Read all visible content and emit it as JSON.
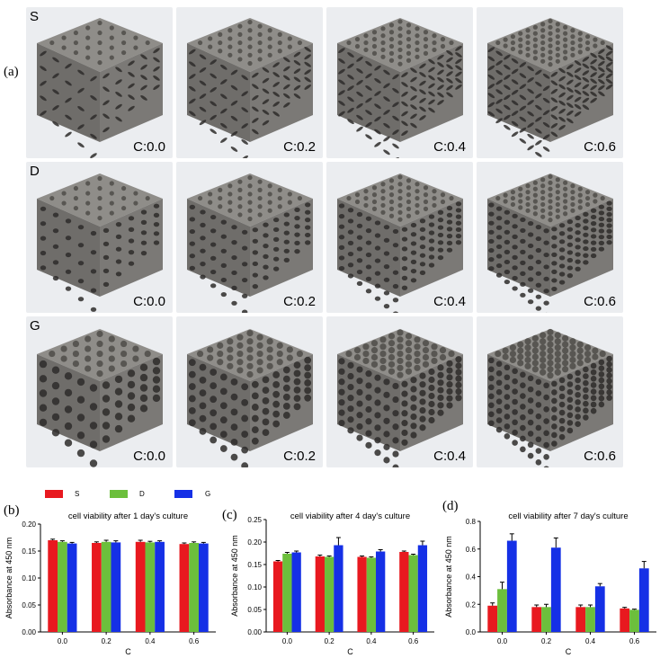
{
  "panel_labels": [
    "(a)",
    "(b)",
    "(c)",
    "(d)"
  ],
  "rows": [
    {
      "letter": "S",
      "captions": [
        "C:0.0",
        "C:0.2",
        "C:0.4",
        "C:0.6"
      ]
    },
    {
      "letter": "D",
      "captions": [
        "C:0.0",
        "C:0.2",
        "C:0.4",
        "C:0.6"
      ]
    },
    {
      "letter": "G",
      "captions": [
        "C:0.0",
        "C:0.2",
        "C:0.4",
        "C:0.6"
      ]
    }
  ],
  "colors": {
    "S": "#e8191f",
    "D": "#6cbf3c",
    "G": "#1530e6",
    "photo_bg": "#ebedf0",
    "metal": "#7d7b78",
    "hole": "#2e2c2a"
  },
  "legend": [
    {
      "key": "S",
      "color": "#e8191f"
    },
    {
      "key": "D",
      "color": "#6cbf3c"
    },
    {
      "key": "G",
      "color": "#1530e6"
    }
  ],
  "chart_data": [
    {
      "type": "bar",
      "title": "cell viability after 1 day's culture",
      "xlabel": "C",
      "ylabel": "Absorbance at 450 nm",
      "categories": [
        "0.0",
        "0.2",
        "0.4",
        "0.6"
      ],
      "ylim": [
        0.0,
        0.2
      ],
      "yticks": [
        "0.00",
        "0.05",
        "0.10",
        "0.15",
        "0.20"
      ],
      "series": [
        {
          "name": "S",
          "values": [
            0.17,
            0.165,
            0.167,
            0.163
          ],
          "errors": [
            0.002,
            0.002,
            0.003,
            0.002
          ]
        },
        {
          "name": "D",
          "values": [
            0.167,
            0.167,
            0.166,
            0.165
          ],
          "errors": [
            0.002,
            0.003,
            0.002,
            0.002
          ]
        },
        {
          "name": "G",
          "values": [
            0.164,
            0.166,
            0.167,
            0.164
          ],
          "errors": [
            0.002,
            0.003,
            0.002,
            0.002
          ]
        }
      ]
    },
    {
      "type": "bar",
      "title": "cell viability after 4 day's culture",
      "xlabel": "C",
      "ylabel": "Absorbance at 450 nm",
      "categories": [
        "0.0",
        "0.2",
        "0.4",
        "0.6"
      ],
      "ylim": [
        0.0,
        0.25
      ],
      "yticks": [
        "0.00",
        "0.05",
        "0.10",
        "0.15",
        "0.20",
        "0.25"
      ],
      "series": [
        {
          "name": "S",
          "values": [
            0.157,
            0.168,
            0.167,
            0.178
          ],
          "errors": [
            0.002,
            0.003,
            0.002,
            0.002
          ]
        },
        {
          "name": "D",
          "values": [
            0.174,
            0.167,
            0.165,
            0.171
          ],
          "errors": [
            0.003,
            0.002,
            0.002,
            0.002
          ]
        },
        {
          "name": "G",
          "values": [
            0.177,
            0.193,
            0.179,
            0.193
          ],
          "errors": [
            0.003,
            0.017,
            0.004,
            0.009
          ]
        }
      ]
    },
    {
      "type": "bar",
      "title": "cell viability after 7 day's culture",
      "xlabel": "C",
      "ylabel": "Absorbance at 450 nm",
      "categories": [
        "0.0",
        "0.2",
        "0.4",
        "0.6"
      ],
      "ylim": [
        0.0,
        0.8
      ],
      "yticks": [
        "0.0",
        "0.2",
        "0.4",
        "0.6",
        "0.8"
      ],
      "series": [
        {
          "name": "S",
          "values": [
            0.19,
            0.18,
            0.18,
            0.17
          ],
          "errors": [
            0.02,
            0.015,
            0.015,
            0.008
          ]
        },
        {
          "name": "D",
          "values": [
            0.31,
            0.18,
            0.18,
            0.16
          ],
          "errors": [
            0.05,
            0.02,
            0.015,
            0.005
          ]
        },
        {
          "name": "G",
          "values": [
            0.66,
            0.61,
            0.33,
            0.46
          ],
          "errors": [
            0.05,
            0.07,
            0.02,
            0.05
          ]
        }
      ]
    }
  ]
}
